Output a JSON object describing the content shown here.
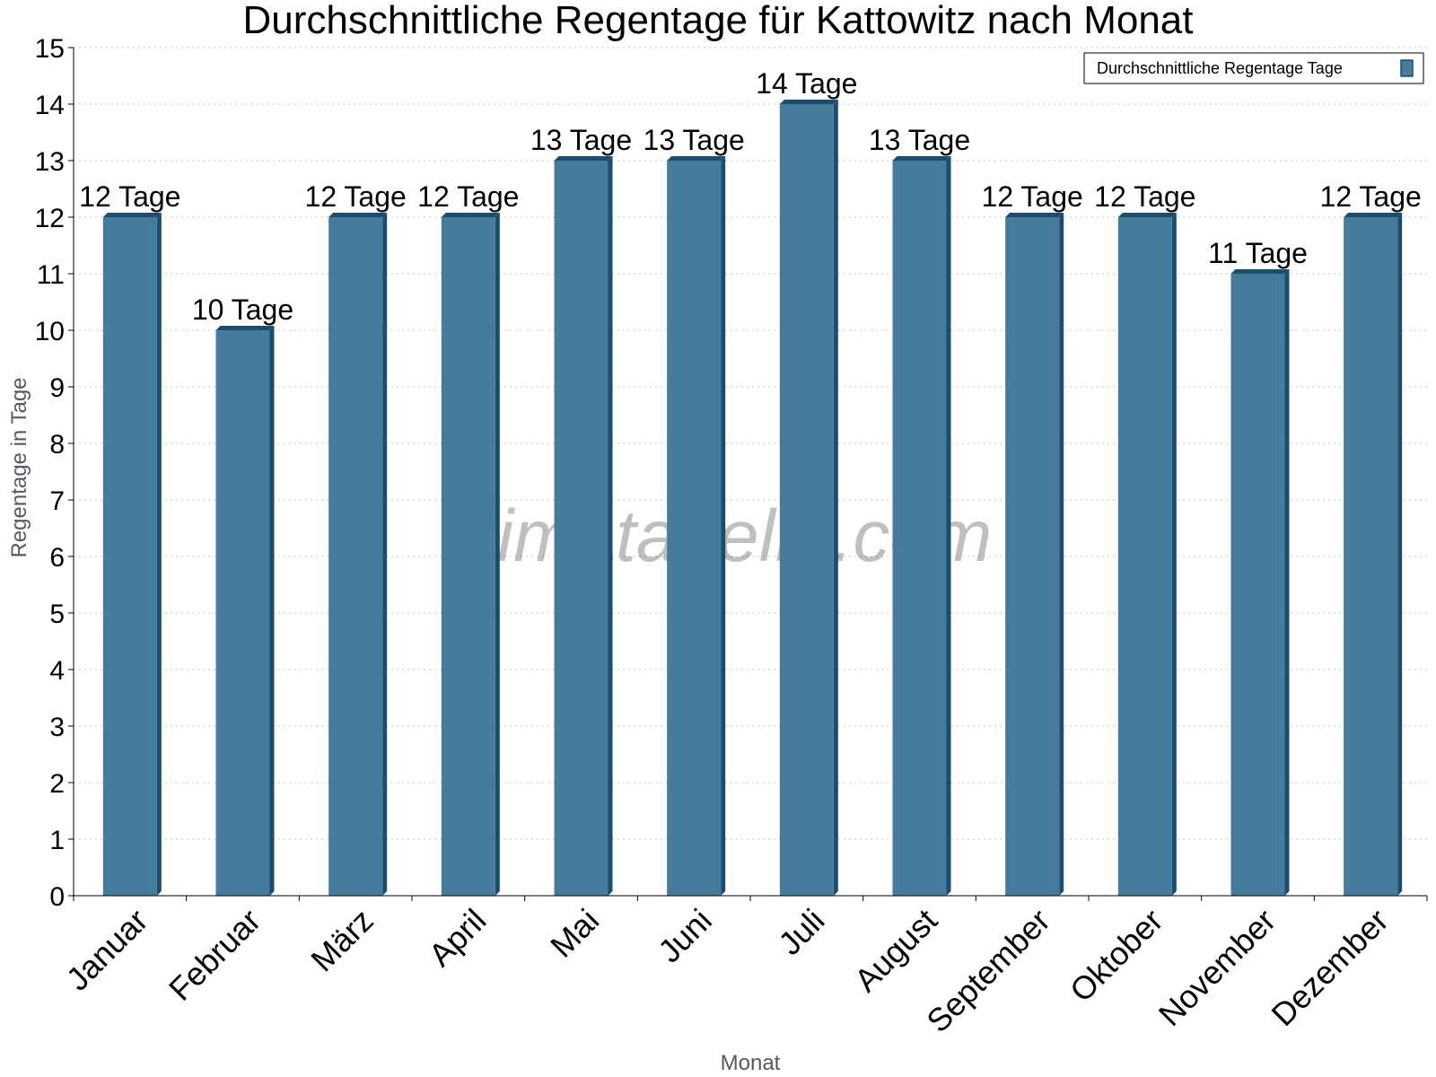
{
  "chart_data": {
    "type": "bar",
    "title": "Durchschnittliche Regentage für Kattowitz nach Monat",
    "xlabel": "Monat",
    "ylabel": "Regentage in Tage",
    "ylim": [
      0,
      15
    ],
    "yticks": [
      0,
      1,
      2,
      3,
      4,
      5,
      6,
      7,
      8,
      9,
      10,
      11,
      12,
      13,
      14,
      15
    ],
    "grid": true,
    "legend_position": "top-right",
    "categories": [
      "Januar",
      "Februar",
      "März",
      "April",
      "Mai",
      "Juni",
      "Juli",
      "August",
      "September",
      "Oktober",
      "November",
      "Dezember"
    ],
    "series": [
      {
        "name": "Durchschnittliche Regentage Tage",
        "values": [
          12,
          10,
          12,
          12,
          13,
          13,
          14,
          13,
          12,
          12,
          11,
          12
        ],
        "labels": [
          "12 Tage",
          "10 Tage",
          "12 Tage",
          "12 Tage",
          "13 Tage",
          "13 Tage",
          "14 Tage",
          "13 Tage",
          "12 Tage",
          "12 Tage",
          "11 Tage",
          "12 Tage"
        ],
        "color": "#467b9e",
        "edge_color": "#1b4d6e"
      }
    ],
    "watermark": "klimatabelle.com"
  }
}
